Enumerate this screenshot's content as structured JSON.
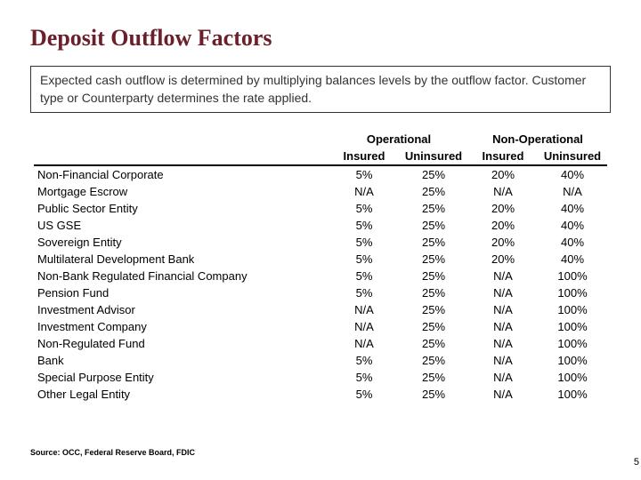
{
  "title": "Deposit Outflow Factors",
  "description": "Expected cash outflow is determined by multiplying balances levels by the outflow factor.  Customer type or Counterparty determines the rate applied.",
  "table": {
    "group_headers": [
      "Operational",
      "Non-Operational"
    ],
    "sub_headers": [
      "Insured",
      "Uninsured",
      "Insured",
      "Uninsured"
    ],
    "rows": [
      {
        "label": "Non-Financial Corporate",
        "v": [
          "5%",
          "25%",
          "20%",
          "40%"
        ]
      },
      {
        "label": "Mortgage Escrow",
        "v": [
          "N/A",
          "25%",
          "N/A",
          "N/A"
        ]
      },
      {
        "label": "Public Sector Entity",
        "v": [
          "5%",
          "25%",
          "20%",
          "40%"
        ]
      },
      {
        "label": "US GSE",
        "v": [
          "5%",
          "25%",
          "20%",
          "40%"
        ]
      },
      {
        "label": "Sovereign Entity",
        "v": [
          "5%",
          "25%",
          "20%",
          "40%"
        ]
      },
      {
        "label": "Multilateral Development Bank",
        "v": [
          "5%",
          "25%",
          "20%",
          "40%"
        ]
      },
      {
        "label": "Non-Bank Regulated Financial Company",
        "v": [
          "5%",
          "25%",
          "N/A",
          "100%"
        ]
      },
      {
        "label": "Pension Fund",
        "v": [
          "5%",
          "25%",
          "N/A",
          "100%"
        ]
      },
      {
        "label": "Investment Advisor",
        "v": [
          "N/A",
          "25%",
          "N/A",
          "100%"
        ]
      },
      {
        "label": "Investment Company",
        "v": [
          "N/A",
          "25%",
          "N/A",
          "100%"
        ]
      },
      {
        "label": "Non-Regulated Fund",
        "v": [
          "N/A",
          "25%",
          "N/A",
          "100%"
        ]
      },
      {
        "label": "Bank",
        "v": [
          "5%",
          "25%",
          "N/A",
          "100%"
        ]
      },
      {
        "label": "Special Purpose Entity",
        "v": [
          "5%",
          "25%",
          "N/A",
          "100%"
        ]
      },
      {
        "label": "Other Legal Entity",
        "v": [
          "5%",
          "25%",
          "N/A",
          "100%"
        ]
      }
    ]
  },
  "source": "Source: OCC, Federal Reserve Board, FDIC",
  "page_number": "5"
}
